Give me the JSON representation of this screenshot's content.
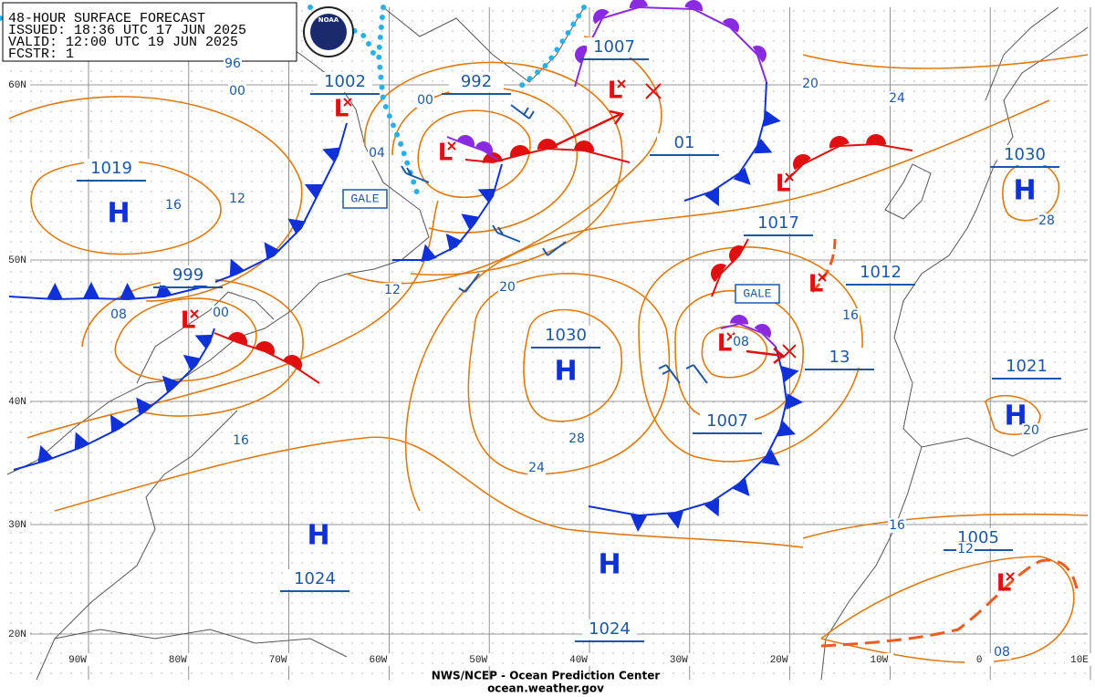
{
  "header": {
    "title": "48-HOUR SURFACE FORECAST",
    "issued": "ISSUED: 18:36 UTC 17 JUN 2025",
    "valid": "VALID:  12:00 UTC 19 JUN 2025",
    "forecaster": "FCSTR: 1",
    "logo": "NOAA"
  },
  "latitude_labels": [
    "60N",
    "50N",
    "40N",
    "30N",
    "20N"
  ],
  "longitude_labels": [
    "90W",
    "80W",
    "70W",
    "60W",
    "50W",
    "40W",
    "30W",
    "20W",
    "10W",
    "0",
    "10E"
  ],
  "pressure_labels": [
    "1002",
    "992",
    "1007",
    "01",
    "1019",
    "1030",
    "1017",
    "1012",
    "999",
    "1030",
    "13",
    "1021",
    "1007",
    "1024",
    "1005",
    "1024"
  ],
  "high_markers": [
    "H",
    "H",
    "H",
    "H",
    "H",
    "H"
  ],
  "low_markers": [
    "L",
    "L",
    "L",
    "L",
    "L",
    "L",
    "L",
    "L"
  ],
  "isobar_labels": [
    "96",
    "00",
    "04",
    "00",
    "16",
    "12",
    "08",
    "00",
    "12",
    "20",
    "20",
    "24",
    "28",
    "16",
    "08",
    "28",
    "24",
    "16",
    "20",
    "16",
    "12",
    "08"
  ],
  "warnings": [
    "GALE",
    "GALE"
  ],
  "footer": {
    "agency": "NWS/NCEP - Ocean Prediction Center",
    "website": "ocean.weather.gov"
  }
}
